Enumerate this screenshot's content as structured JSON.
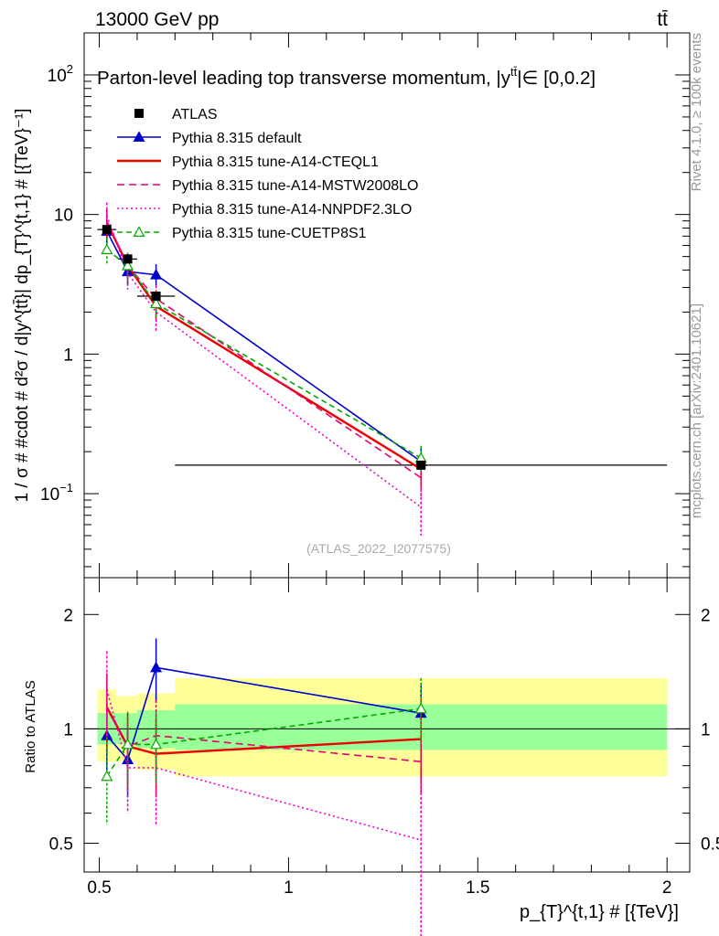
{
  "header": {
    "energy_label": "13000 GeV pp",
    "process_label": "tt̄"
  },
  "side_labels": {
    "rivet": "Rivet 4.1.0, ≥ 100k events",
    "mcplots": "mcplots.cern.ch [arXiv:2401.10621]"
  },
  "chart_data": [
    {
      "type": "line",
      "panel": "main",
      "title": "Parton-level leading top transverse momentum, |y",
      "title_sup": "tt̄",
      "title_tail": "|∈ [0,0.2]",
      "ylabel": "1 / σ # #cdot # d²σ / d|y^{tt̄}| dp_{T}^{t,1} # [{TeV}⁻¹]",
      "yscale": "log",
      "ylim": [
        0.025,
        200
      ],
      "xlim": [
        0.46,
        2.06
      ],
      "yticks": [
        {
          "value": 0.1,
          "base": "10",
          "exp": "−1"
        },
        {
          "value": 1,
          "base": "1",
          "exp": ""
        },
        {
          "value": 10,
          "base": "10",
          "exp": ""
        },
        {
          "value": 100,
          "base": "10",
          "exp": "2"
        }
      ],
      "analysis_label": "(ATLAS_2022_I2077575)",
      "data": {
        "name": "ATLAS",
        "x": [
          0.52,
          0.575,
          0.65,
          1.35
        ],
        "xerr": [
          0.025,
          0.025,
          0.05,
          0.65
        ],
        "y": [
          7.8,
          4.8,
          2.6,
          0.16
        ]
      },
      "series": [
        {
          "name": "Pythia 8.315 default",
          "color": "#0000cc",
          "dash": "",
          "marker": "triangle",
          "x": [
            0.52,
            0.575,
            0.65,
            1.35
          ],
          "y": [
            7.6,
            3.9,
            3.7,
            0.17
          ],
          "ylo": [
            6.0,
            3.1,
            3.1,
            0.135
          ],
          "yhi": [
            9.2,
            4.6,
            4.4,
            0.21
          ]
        },
        {
          "name": "Pythia 8.315 tune-A14-CTEQL1",
          "color": "#ee0000",
          "dash": "",
          "marker": "none",
          "x": [
            0.52,
            0.575,
            0.65,
            1.35
          ],
          "y": [
            8.8,
            4.3,
            2.2,
            0.15
          ],
          "ylo": [
            6.8,
            3.4,
            1.7,
            0.11
          ],
          "yhi": [
            10.8,
            5.2,
            2.8,
            0.19
          ]
        },
        {
          "name": "Pythia 8.315 tune-A14-MSTW2008LO",
          "color": "#e8006e",
          "dash": "8,5",
          "marker": "none",
          "x": [
            0.52,
            0.575,
            0.65,
            1.35
          ],
          "y": [
            8.9,
            4.3,
            2.5,
            0.13
          ],
          "ylo": [
            6.9,
            3.3,
            1.9,
            0.095
          ],
          "yhi": [
            10.9,
            5.3,
            3.1,
            0.17
          ]
        },
        {
          "name": "Pythia 8.315 tune-A14-NNPDF2.3LO",
          "color": "#ee00cc",
          "dash": "2,3",
          "marker": "none",
          "x": [
            0.52,
            0.575,
            0.65,
            1.35
          ],
          "y": [
            9.8,
            3.8,
            2.0,
            0.08
          ],
          "ylo": [
            7.4,
            2.9,
            1.45,
            0.05
          ],
          "yhi": [
            12.2,
            4.7,
            2.6,
            0.11
          ]
        },
        {
          "name": "Pythia 8.315 tune-CUETP8S1",
          "color": "#00aa00",
          "dash": "6,4",
          "marker": "triangle-open",
          "x": [
            0.52,
            0.575,
            0.65,
            1.35
          ],
          "y": [
            5.6,
            4.3,
            2.3,
            0.18
          ],
          "ylo": [
            4.4,
            3.3,
            1.8,
            0.145
          ],
          "yhi": [
            6.8,
            5.3,
            2.8,
            0.22
          ]
        }
      ]
    },
    {
      "type": "line",
      "panel": "ratio",
      "ylabel": "Ratio to ATLAS",
      "xlabel": "p_{T}^{t,1} # [{TeV}]",
      "yscale": "log",
      "ylim": [
        0.42,
        2.5
      ],
      "xlim": [
        0.46,
        2.06
      ],
      "yticks": [
        {
          "value": 0.5,
          "label": "0.5"
        },
        {
          "value": 1,
          "label": "1"
        },
        {
          "value": 2,
          "label": "2"
        }
      ],
      "xticks": [
        {
          "value": 0.5,
          "label": "0.5"
        },
        {
          "value": 1,
          "label": "1"
        },
        {
          "value": 1.5,
          "label": "1.5"
        },
        {
          "value": 2,
          "label": "2"
        }
      ],
      "bands": [
        {
          "x0": 0.495,
          "x1": 0.545,
          "yellow": [
            0.82,
            1.27
          ],
          "green": [
            0.91,
            1.1
          ]
        },
        {
          "x0": 0.545,
          "x1": 0.6,
          "yellow": [
            0.82,
            1.22
          ],
          "green": [
            0.91,
            1.1
          ]
        },
        {
          "x0": 0.6,
          "x1": 0.7,
          "yellow": [
            0.78,
            1.24
          ],
          "green": [
            0.89,
            1.12
          ]
        },
        {
          "x0": 0.7,
          "x1": 2.0,
          "yellow": [
            0.75,
            1.36
          ],
          "green": [
            0.88,
            1.16
          ]
        }
      ],
      "series": [
        {
          "name": "Pythia 8.315 default",
          "y": [
            0.96,
            0.83,
            1.45,
            1.1
          ],
          "ylo": [
            0.78,
            0.66,
            1.17,
            0.87
          ],
          "yhi": [
            1.17,
            1.0,
            1.73,
            1.3
          ]
        },
        {
          "name": "Pythia 8.315 tune-A14-CTEQL1",
          "y": [
            1.14,
            0.9,
            0.86,
            0.94
          ],
          "ylo": [
            0.88,
            0.7,
            0.66,
            0.68
          ],
          "yhi": [
            1.4,
            1.1,
            1.06,
            1.2
          ]
        },
        {
          "name": "Pythia 8.315 tune-A14-MSTW2008LO",
          "y": [
            1.14,
            0.9,
            0.96,
            0.82
          ],
          "ylo": [
            0.89,
            0.69,
            0.73,
            0.6
          ],
          "yhi": [
            1.4,
            1.1,
            1.19,
            1.06
          ]
        },
        {
          "name": "Pythia 8.315 tune-A14-NNPDF2.3LO",
          "y": [
            1.27,
            0.79,
            0.79,
            0.51
          ],
          "ylo": [
            0.95,
            0.6,
            0.56,
            0.28
          ],
          "yhi": [
            1.6,
            0.99,
            1.02,
            0.72
          ]
        },
        {
          "name": "Pythia 8.315 tune-CUETP8S1",
          "y": [
            0.75,
            0.91,
            0.91,
            1.13
          ],
          "ylo": [
            0.56,
            0.7,
            0.72,
            0.92
          ],
          "yhi": [
            0.95,
            1.11,
            1.11,
            1.36
          ]
        }
      ]
    }
  ]
}
